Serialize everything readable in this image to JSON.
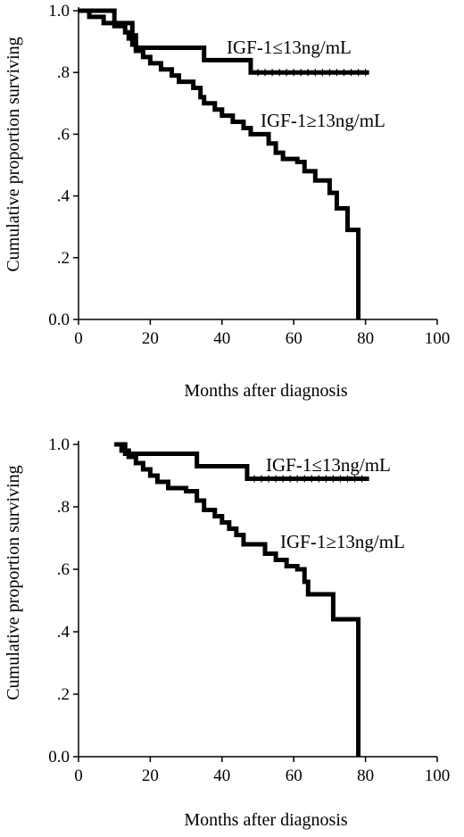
{
  "chart_data": [
    {
      "type": "line",
      "subtype": "kaplan-meier step",
      "xlabel": "Months after diagnosis",
      "ylabel": "Cumulative proportion surviving",
      "xlim": [
        0,
        100
      ],
      "ylim": [
        0,
        1
      ],
      "x_ticks": [
        "0",
        "20",
        "40",
        "60",
        "80",
        "100"
      ],
      "y_ticks": [
        "0.0",
        ".2",
        ".4",
        ".6",
        ".8",
        "1.0"
      ],
      "grid": false,
      "series": [
        {
          "name": "IGF-1≤13ng/mL",
          "steps": [
            [
              0,
              1.0
            ],
            [
              10,
              0.96
            ],
            [
              15,
              0.92
            ],
            [
              16,
              0.88
            ],
            [
              35,
              0.84
            ],
            [
              48,
              0.8
            ],
            [
              81,
              0.8
            ]
          ]
        },
        {
          "name": "IGF-1≥13ng/mL",
          "steps": [
            [
              0,
              1.0
            ],
            [
              3,
              0.98
            ],
            [
              7,
              0.96
            ],
            [
              10,
              0.95
            ],
            [
              13,
              0.93
            ],
            [
              14,
              0.91
            ],
            [
              15,
              0.89
            ],
            [
              16,
              0.87
            ],
            [
              18,
              0.85
            ],
            [
              20,
              0.83
            ],
            [
              23,
              0.81
            ],
            [
              26,
              0.79
            ],
            [
              28,
              0.77
            ],
            [
              32,
              0.75
            ],
            [
              34,
              0.72
            ],
            [
              35,
              0.7
            ],
            [
              38,
              0.68
            ],
            [
              40,
              0.66
            ],
            [
              43,
              0.64
            ],
            [
              46,
              0.62
            ],
            [
              48,
              0.6
            ],
            [
              52,
              0.6
            ],
            [
              53,
              0.57
            ],
            [
              55,
              0.54
            ],
            [
              57,
              0.52
            ],
            [
              61,
              0.51
            ],
            [
              63,
              0.48
            ],
            [
              66,
              0.45
            ],
            [
              70,
              0.41
            ],
            [
              72,
              0.36
            ],
            [
              75,
              0.29
            ],
            [
              78,
              0.29
            ],
            [
              78,
              0.0
            ]
          ]
        }
      ]
    },
    {
      "type": "line",
      "subtype": "kaplan-meier step",
      "xlabel": "Months after diagnosis",
      "ylabel": "Cumulative proportion surviving",
      "xlim": [
        0,
        100
      ],
      "ylim": [
        0,
        1
      ],
      "x_ticks": [
        "0",
        "20",
        "40",
        "60",
        "80",
        "100"
      ],
      "y_ticks": [
        "0.0",
        ".2",
        ".4",
        ".6",
        ".8",
        "1.0"
      ],
      "grid": false,
      "series": [
        {
          "name": "IGF-1≤13ng/mL",
          "steps": [
            [
              10,
              1.0
            ],
            [
              13,
              0.97
            ],
            [
              33,
              0.93
            ],
            [
              47,
              0.89
            ],
            [
              81,
              0.89
            ]
          ]
        },
        {
          "name": "IGF-1≥13ng/mL",
          "steps": [
            [
              10,
              1.0
            ],
            [
              12,
              0.98
            ],
            [
              14,
              0.96
            ],
            [
              16,
              0.94
            ],
            [
              18,
              0.92
            ],
            [
              20,
              0.9
            ],
            [
              22,
              0.88
            ],
            [
              25,
              0.86
            ],
            [
              30,
              0.85
            ],
            [
              33,
              0.82
            ],
            [
              35,
              0.79
            ],
            [
              38,
              0.77
            ],
            [
              40,
              0.75
            ],
            [
              42,
              0.73
            ],
            [
              44,
              0.71
            ],
            [
              46,
              0.68
            ],
            [
              51,
              0.68
            ],
            [
              52,
              0.65
            ],
            [
              55,
              0.63
            ],
            [
              58,
              0.61
            ],
            [
              61,
              0.6
            ],
            [
              63,
              0.56
            ],
            [
              64,
              0.52
            ],
            [
              70,
              0.52
            ],
            [
              71,
              0.44
            ],
            [
              78,
              0.44
            ],
            [
              78,
              0.0
            ]
          ]
        }
      ]
    }
  ]
}
